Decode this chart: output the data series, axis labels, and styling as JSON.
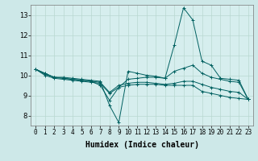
{
  "xlabel": "Humidex (Indice chaleur)",
  "xlim": [
    -0.5,
    23.5
  ],
  "ylim": [
    7.5,
    13.5
  ],
  "yticks": [
    8,
    9,
    10,
    11,
    12,
    13
  ],
  "xticks": [
    0,
    1,
    2,
    3,
    4,
    5,
    6,
    7,
    8,
    9,
    10,
    11,
    12,
    13,
    14,
    15,
    16,
    17,
    18,
    19,
    20,
    21,
    22,
    23
  ],
  "bg_color": "#cde8e8",
  "plot_bg_color": "#d6eeee",
  "grid_color": "#b8d8d0",
  "line_color": "#006060",
  "lines": [
    [
      10.3,
      10.1,
      9.9,
      9.9,
      9.85,
      9.8,
      9.75,
      9.7,
      8.5,
      7.65,
      10.2,
      10.1,
      10.0,
      9.95,
      9.85,
      11.5,
      13.35,
      12.75,
      10.7,
      10.5,
      9.85,
      9.8,
      9.75,
      8.8
    ],
    [
      10.3,
      10.1,
      9.9,
      9.85,
      9.8,
      9.75,
      9.7,
      9.5,
      8.75,
      9.4,
      9.8,
      9.85,
      9.9,
      9.9,
      9.85,
      10.2,
      10.35,
      10.5,
      10.1,
      9.9,
      9.8,
      9.7,
      9.65,
      8.8
    ],
    [
      10.3,
      10.0,
      9.85,
      9.8,
      9.75,
      9.7,
      9.65,
      9.6,
      9.1,
      9.4,
      9.5,
      9.55,
      9.55,
      9.55,
      9.5,
      9.5,
      9.5,
      9.5,
      9.2,
      9.1,
      9.0,
      8.9,
      8.85,
      8.8
    ],
    [
      10.3,
      10.05,
      9.9,
      9.85,
      9.8,
      9.75,
      9.7,
      9.65,
      9.15,
      9.5,
      9.6,
      9.65,
      9.65,
      9.6,
      9.55,
      9.6,
      9.7,
      9.7,
      9.55,
      9.4,
      9.3,
      9.2,
      9.15,
      8.8
    ]
  ],
  "tick_fontsize": 5.5,
  "xlabel_fontsize": 7
}
